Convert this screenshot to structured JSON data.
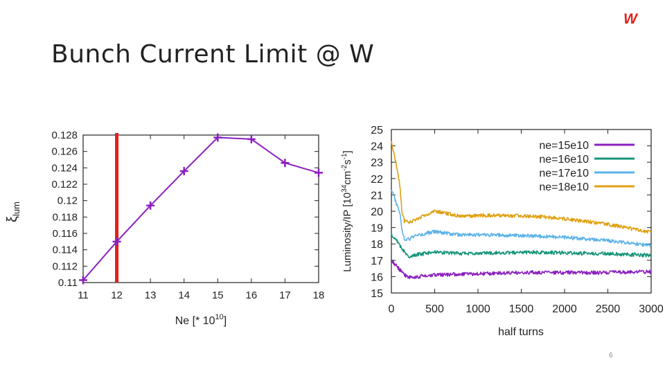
{
  "slide": {
    "title": "Bunch Current Limit @ W",
    "brand": "W",
    "page_number": "6"
  },
  "colors": {
    "purple": "#8b1fbf",
    "red": "#e0201b",
    "green": "#149478",
    "blue": "#5ab2e8",
    "gold": "#e0a010"
  },
  "chart_data": [
    {
      "type": "line",
      "title": "",
      "xlabel": "Ne [* 10",
      "xlabel_sup": "10",
      "xlabel_end": "]",
      "ylabel": "ξ",
      "ylabel_sub": "lum",
      "xlim": [
        11,
        18
      ],
      "ylim": [
        0.11,
        0.128
      ],
      "xticks": [
        11,
        12,
        13,
        14,
        15,
        16,
        17,
        18
      ],
      "yticks": [
        "0.11",
        "0.112",
        "0.114",
        "0.116",
        "0.118",
        "0.12",
        "0.122",
        "0.124",
        "0.126",
        "0.128"
      ],
      "series": [
        {
          "name": "xi_lum",
          "x": [
            11,
            12,
            13,
            14,
            15,
            16,
            17,
            18
          ],
          "values": [
            0.1103,
            0.115,
            0.1194,
            0.1236,
            0.1277,
            0.1275,
            0.1246,
            0.1234
          ]
        }
      ],
      "vline": {
        "x": 12,
        "color": "#e0201b"
      }
    },
    {
      "type": "line",
      "title": "",
      "xlabel": "half turns",
      "ylabel": "Luminosity/IP [10",
      "ylabel_sup1": "34",
      "ylabel_mid": "cm",
      "ylabel_sup2": "-2",
      "ylabel_mid2": "s",
      "ylabel_sup3": "-1",
      "ylabel_end": "]",
      "xlim": [
        0,
        3000
      ],
      "ylim": [
        15,
        25
      ],
      "xticks": [
        "0",
        "500",
        "1000",
        "1500",
        "2000",
        "2500",
        "3000"
      ],
      "yticks": [
        "15",
        "16",
        "17",
        "18",
        "19",
        "20",
        "21",
        "22",
        "23",
        "24",
        "25"
      ],
      "legend_position": "top-right",
      "series": [
        {
          "name": "ne=15e10",
          "x": [
            0,
            50,
            100,
            150,
            200,
            300,
            500,
            800,
            1200,
            1600,
            2000,
            2500,
            3000
          ],
          "values": [
            17.0,
            16.7,
            16.4,
            16.1,
            15.95,
            16.0,
            16.1,
            16.15,
            16.2,
            16.25,
            16.25,
            16.25,
            16.3
          ]
        },
        {
          "name": "ne=16e10",
          "x": [
            0,
            50,
            100,
            150,
            200,
            300,
            500,
            800,
            1200,
            1600,
            2000,
            2500,
            3000
          ],
          "values": [
            18.6,
            18.3,
            17.9,
            17.5,
            17.2,
            17.35,
            17.5,
            17.4,
            17.45,
            17.5,
            17.45,
            17.4,
            17.3
          ]
        },
        {
          "name": "ne=17e10",
          "x": [
            0,
            50,
            100,
            120,
            150,
            200,
            300,
            500,
            800,
            1200,
            1600,
            2000,
            2500,
            3000
          ],
          "values": [
            21.3,
            20.6,
            19.8,
            18.9,
            18.3,
            18.3,
            18.55,
            18.75,
            18.55,
            18.55,
            18.5,
            18.4,
            18.2,
            17.9
          ]
        },
        {
          "name": "ne=18e10",
          "x": [
            0,
            50,
            100,
            120,
            150,
            200,
            300,
            500,
            800,
            1200,
            1600,
            2000,
            2500,
            3000
          ],
          "values": [
            24.3,
            23.0,
            21.5,
            20.0,
            19.4,
            19.3,
            19.55,
            20.0,
            19.7,
            19.75,
            19.7,
            19.55,
            19.2,
            18.7
          ]
        }
      ]
    }
  ]
}
